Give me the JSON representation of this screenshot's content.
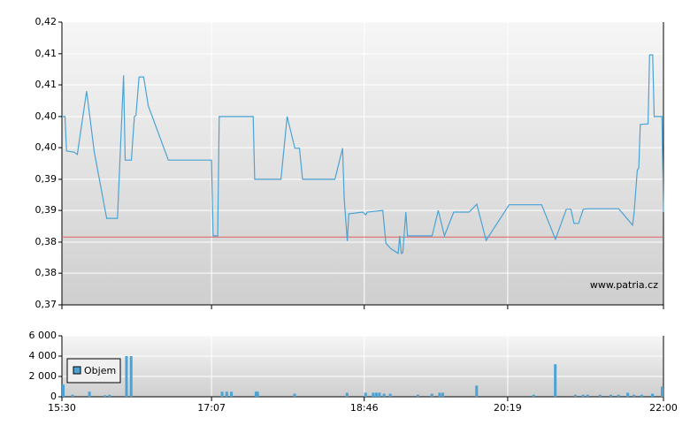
{
  "chart_data": [
    {
      "type": "line",
      "x": [
        "15:30",
        "15:32",
        "15:33",
        "15:38",
        "15:40",
        "15:46",
        "15:51",
        "15:59",
        "16:06",
        "16:10",
        "16:11",
        "16:15",
        "16:17",
        "16:18",
        "16:20",
        "16:23",
        "16:26",
        "16:39",
        "17:07",
        "17:08",
        "17:11",
        "17:12",
        "17:34",
        "17:35",
        "17:52",
        "17:56",
        "18:01",
        "18:04",
        "18:06",
        "18:27",
        "18:32",
        "18:33",
        "18:35",
        "18:36",
        "18:45",
        "18:47",
        "18:48",
        "18:58",
        "19:00",
        "19:03",
        "19:08",
        "19:09",
        "19:10",
        "19:11",
        "19:13",
        "19:14",
        "19:30",
        "19:34",
        "19:38",
        "19:44",
        "19:54",
        "19:59",
        "20:05",
        "20:20",
        "20:41",
        "20:50",
        "20:57",
        "21:00",
        "21:02",
        "21:05",
        "21:08",
        "21:11",
        "21:31",
        "21:40",
        "21:41",
        "21:43",
        "21:44",
        "21:45",
        "21:50",
        "21:51",
        "21:53",
        "21:54",
        "21:59",
        "22:00"
      ],
      "values": [
        0.4033,
        0.4033,
        0.3972,
        0.397,
        0.3966,
        0.4078,
        0.397,
        0.3853,
        0.3853,
        0.4106,
        0.3956,
        0.3956,
        0.4033,
        0.4035,
        0.4103,
        0.4103,
        0.4052,
        0.3956,
        0.3956,
        0.3822,
        0.3822,
        0.4033,
        0.4033,
        0.3922,
        0.3922,
        0.4033,
        0.3977,
        0.3977,
        0.3922,
        0.3922,
        0.3977,
        0.3888,
        0.3813,
        0.3861,
        0.3864,
        0.3859,
        0.3864,
        0.3867,
        0.3809,
        0.38,
        0.3791,
        0.3822,
        0.3791,
        0.3792,
        0.3864,
        0.3822,
        0.3822,
        0.3867,
        0.3822,
        0.3864,
        0.3864,
        0.3878,
        0.3814,
        0.3877,
        0.3877,
        0.3816,
        0.3869,
        0.3869,
        0.3844,
        0.3844,
        0.3869,
        0.387,
        0.387,
        0.3841,
        0.3864,
        0.3938,
        0.3942,
        0.4019,
        0.402,
        0.4142,
        0.4142,
        0.4033,
        0.4033,
        0.3864
      ],
      "color": "#4aa3d4",
      "reference_line": {
        "value": 0.382,
        "color": "#e06060"
      },
      "xlim": [
        "15:30",
        "22:00"
      ],
      "ylim": [
        0.37,
        0.42
      ],
      "yticks": [
        {
          "value": 0.37,
          "label": "0,37"
        },
        {
          "value": 0.3756,
          "label": "0,38"
        },
        {
          "value": 0.3811,
          "label": "0,38"
        },
        {
          "value": 0.3867,
          "label": "0,39"
        },
        {
          "value": 0.3922,
          "label": "0,39"
        },
        {
          "value": 0.3978,
          "label": "0,40"
        },
        {
          "value": 0.4033,
          "label": "0,40"
        },
        {
          "value": 0.4089,
          "label": "0,41"
        },
        {
          "value": 0.4144,
          "label": "0,41"
        },
        {
          "value": 0.42,
          "label": "0,42"
        }
      ],
      "grid": true,
      "annotation": "www.patria.cz"
    },
    {
      "type": "bar",
      "x": [
        "15:30",
        "15:36",
        "15:47",
        "15:57",
        "16:00",
        "16:11",
        "16:14",
        "17:13",
        "17:16",
        "17:19",
        "17:35",
        "17:36",
        "18:00",
        "18:34",
        "18:46",
        "18:51",
        "18:53",
        "18:55",
        "18:58",
        "19:02",
        "19:20",
        "19:29",
        "19:34",
        "19:36",
        "19:58",
        "20:35",
        "20:49",
        "21:02",
        "21:07",
        "21:10",
        "21:18",
        "21:25",
        "21:30",
        "21:36",
        "21:40",
        "21:45",
        "21:52",
        "21:59"
      ],
      "series": [
        {
          "name": "Objem",
          "color": "#4aa3d4",
          "values": [
            1200,
            200,
            500,
            150,
            200,
            4000,
            4000,
            500,
            500,
            500,
            500,
            500,
            300,
            400,
            400,
            400,
            400,
            400,
            300,
            300,
            200,
            300,
            400,
            400,
            1100,
            200,
            3200,
            200,
            200,
            200,
            200,
            200,
            200,
            400,
            200,
            200,
            300,
            1000
          ]
        }
      ],
      "xlim": [
        "15:30",
        "22:00"
      ],
      "ylim": [
        0,
        6000
      ],
      "yticks": [
        {
          "value": 0,
          "label": "0"
        },
        {
          "value": 2000,
          "label": "2 000"
        },
        {
          "value": 4000,
          "label": "4 000"
        },
        {
          "value": 6000,
          "label": "6 000"
        }
      ],
      "xticks": [
        "15:30",
        "17:07",
        "18:46",
        "20:19",
        "22:00"
      ],
      "grid": true,
      "legend": "top-left"
    }
  ]
}
